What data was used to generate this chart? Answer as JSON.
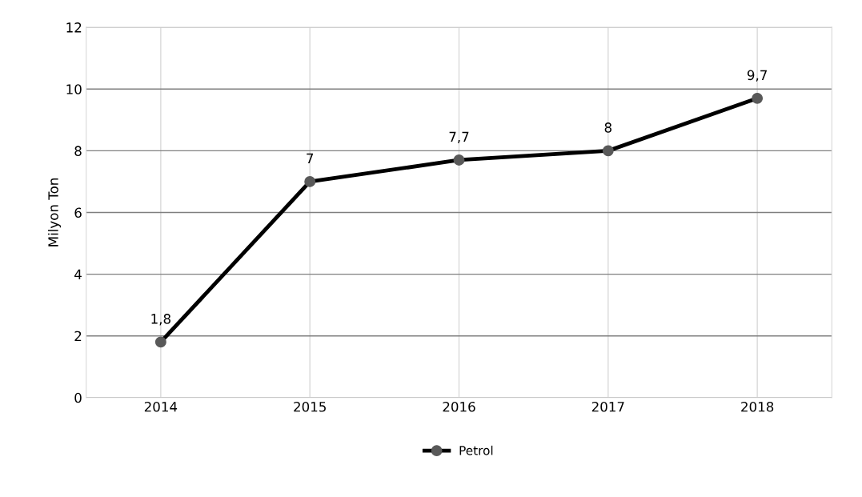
{
  "chart_data": {
    "type": "line",
    "ylabel": "Milyon Ton",
    "categories": [
      "2014",
      "2015",
      "2016",
      "2017",
      "2018"
    ],
    "series": [
      {
        "name": "Petrol",
        "color": "#000000",
        "colors": [
          "#595959",
          "#595959",
          "#595959",
          "#595959",
          "#595959"
        ],
        "values": [
          1.8,
          7,
          7.7,
          8,
          9.7
        ],
        "value_labels": [
          "1,8",
          "7",
          "7,7",
          "8",
          "9,7"
        ]
      }
    ],
    "ylim": [
      0,
      12
    ],
    "yticks": [
      0,
      2,
      4,
      6,
      8,
      10,
      12
    ],
    "grid": true,
    "legend": "bottom",
    "marker": "circle",
    "line_style": "solid"
  }
}
